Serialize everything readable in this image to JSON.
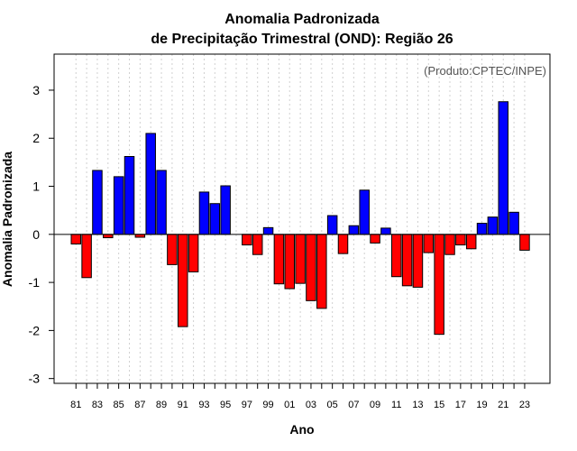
{
  "chart_data": {
    "type": "bar",
    "title": "Anomalia Padronizada",
    "subtitle": "de Precipitação Trimestral (OND): Região 26",
    "xlabel": "Ano",
    "ylabel": "Anomalia Padronizada",
    "annotation": "(Produto:CPTEC/INPE)",
    "ylim": [
      -3.1,
      3.75
    ],
    "yticks": [
      "-3",
      "-2",
      "-1",
      "0",
      "1",
      "2",
      "3"
    ],
    "xtick_labels": [
      "81",
      "83",
      "85",
      "87",
      "89",
      "91",
      "93",
      "95",
      "97",
      "99",
      "01",
      "03",
      "05",
      "07",
      "09",
      "11",
      "13",
      "15",
      "17",
      "19",
      "21",
      "23"
    ],
    "categories": [
      "81",
      "82",
      "83",
      "84",
      "85",
      "86",
      "87",
      "88",
      "89",
      "90",
      "91",
      "92",
      "93",
      "94",
      "95",
      "96",
      "97",
      "98",
      "99",
      "00",
      "01",
      "02",
      "03",
      "04",
      "05",
      "06",
      "07",
      "08",
      "09",
      "10",
      "11",
      "12",
      "13",
      "14",
      "15",
      "16",
      "17",
      "18",
      "19",
      "20",
      "21",
      "22",
      "23"
    ],
    "values": [
      -0.2,
      -0.9,
      1.33,
      -0.07,
      1.2,
      1.62,
      -0.06,
      2.1,
      1.33,
      -0.63,
      -1.92,
      -0.78,
      0.88,
      0.64,
      1.01,
      0.0,
      -0.22,
      -0.42,
      0.14,
      -1.03,
      -1.13,
      -1.02,
      -1.38,
      -1.54,
      0.39,
      -0.4,
      0.18,
      0.92,
      -0.18,
      0.13,
      -0.88,
      -1.07,
      -1.1,
      -0.38,
      -2.08,
      -0.42,
      -0.22,
      -0.3,
      0.23,
      0.36,
      2.76,
      0.46,
      -0.33
    ],
    "positive_color": "#0000ff",
    "negative_color": "#ff0000",
    "grid": true
  }
}
